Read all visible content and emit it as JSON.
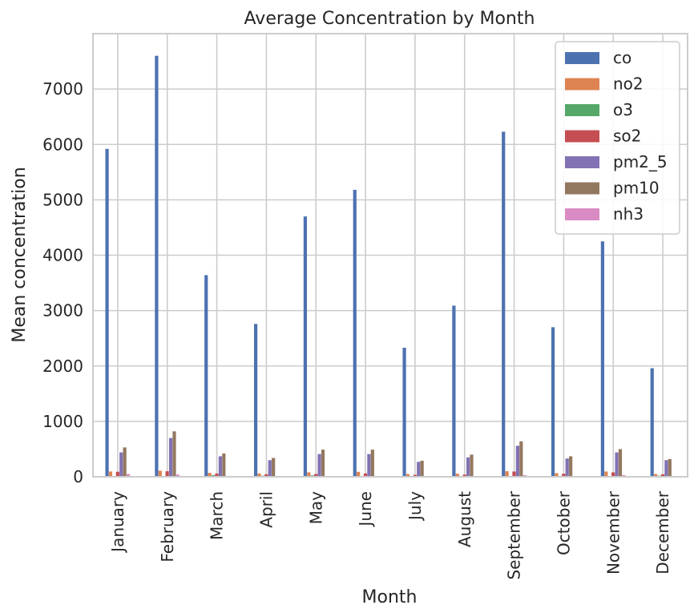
{
  "chart_data": {
    "type": "bar",
    "title": "Average Concentration by Month",
    "xlabel": "Month",
    "ylabel": "Mean concentration",
    "ylim": [
      0,
      8000
    ],
    "yticks": [
      0,
      1000,
      2000,
      3000,
      4000,
      5000,
      6000,
      7000
    ],
    "grid": true,
    "legend_position": "top-right",
    "categories": [
      "January",
      "February",
      "March",
      "April",
      "May",
      "June",
      "July",
      "August",
      "September",
      "October",
      "November",
      "December"
    ],
    "series": [
      {
        "name": "co",
        "color": "#4c72b0",
        "values": [
          5920,
          7600,
          3640,
          2760,
          4700,
          5180,
          2330,
          3090,
          6230,
          2700,
          4250,
          1960
        ]
      },
      {
        "name": "no2",
        "color": "#dd8452",
        "values": [
          95,
          110,
          70,
          60,
          80,
          90,
          50,
          55,
          100,
          65,
          95,
          50
        ]
      },
      {
        "name": "o3",
        "color": "#55a868",
        "values": [
          10,
          15,
          30,
          20,
          25,
          15,
          10,
          12,
          15,
          15,
          10,
          20
        ]
      },
      {
        "name": "so2",
        "color": "#c44e52",
        "values": [
          90,
          100,
          60,
          45,
          50,
          60,
          35,
          40,
          95,
          55,
          80,
          45
        ]
      },
      {
        "name": "pm2_5",
        "color": "#8172b3",
        "values": [
          440,
          700,
          370,
          300,
          410,
          410,
          270,
          350,
          560,
          330,
          440,
          300
        ]
      },
      {
        "name": "pm10",
        "color": "#937860",
        "values": [
          530,
          820,
          420,
          340,
          490,
          490,
          290,
          400,
          640,
          370,
          500,
          320
        ]
      },
      {
        "name": "nh3",
        "color": "#da8bc3",
        "values": [
          50,
          40,
          15,
          8,
          15,
          15,
          10,
          10,
          30,
          15,
          30,
          10
        ]
      }
    ]
  }
}
